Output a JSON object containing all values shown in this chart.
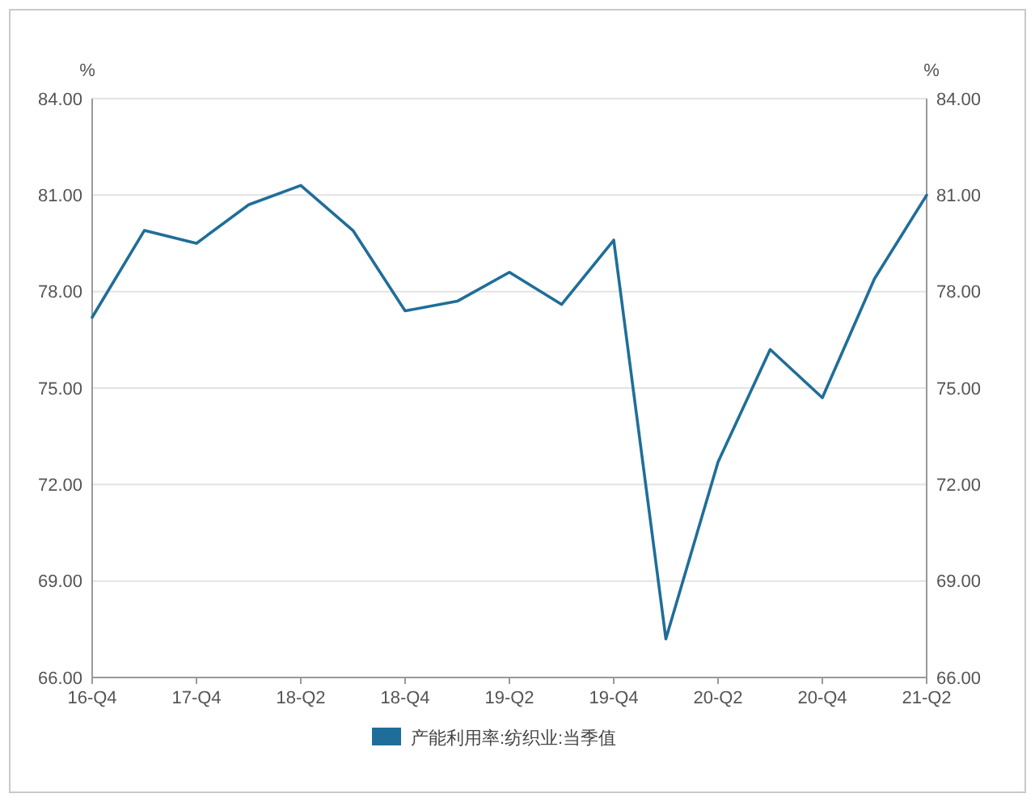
{
  "chart_data": {
    "type": "line",
    "ylabel": "%",
    "y2label": "%",
    "categories": [
      "16-Q4",
      null,
      "17-Q4",
      null,
      "18-Q2",
      null,
      "18-Q4",
      null,
      "19-Q2",
      null,
      "19-Q4",
      null,
      "20-Q2",
      null,
      "20-Q4",
      null,
      "21-Q2"
    ],
    "series": [
      {
        "name": "产能利用率:纺织业:当季值",
        "color": "#1f6e99",
        "values": [
          77.2,
          79.9,
          79.5,
          80.7,
          81.3,
          79.9,
          77.4,
          77.7,
          78.6,
          77.6,
          79.6,
          67.2,
          72.7,
          76.2,
          74.7,
          78.4,
          81.0
        ]
      }
    ],
    "ylim": [
      66,
      84
    ],
    "yticks": [
      {
        "value": 66,
        "label": "66.00"
      },
      {
        "value": 69,
        "label": "69.00"
      },
      {
        "value": 72,
        "label": "72.00"
      },
      {
        "value": 75,
        "label": "75.00"
      },
      {
        "value": 78,
        "label": "78.00"
      },
      {
        "value": 81,
        "label": "81.00"
      },
      {
        "value": 84,
        "label": "84.00"
      }
    ],
    "y2lim": [
      66,
      84
    ],
    "y2ticks": [
      {
        "value": 66,
        "label": "66.00"
      },
      {
        "value": 69,
        "label": "69.00"
      },
      {
        "value": 72,
        "label": "72.00"
      },
      {
        "value": 75,
        "label": "75.00"
      },
      {
        "value": 78,
        "label": "78.00"
      },
      {
        "value": 81,
        "label": "81.00"
      },
      {
        "value": 84,
        "label": "84.00"
      }
    ],
    "grid": "y",
    "legend": "bottom",
    "marker": "none",
    "line_style": "solid"
  }
}
